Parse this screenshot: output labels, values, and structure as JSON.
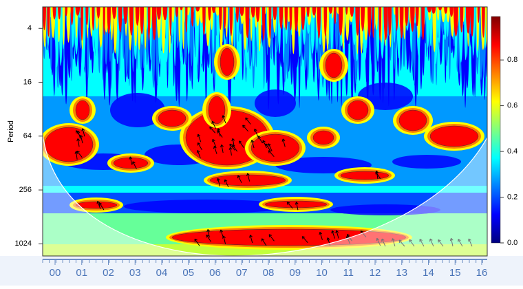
{
  "chart_data": {
    "type": "heatmap",
    "y_label": "Period",
    "y_scale": "log",
    "y_inverted": true,
    "ylim": [
      2.3,
      1400
    ],
    "yticks": [
      4,
      16,
      64,
      256,
      1024
    ],
    "categories": [
      "00",
      "01",
      "02",
      "03",
      "04",
      "05",
      "06",
      "07",
      "08",
      "09",
      "10",
      "11",
      "12",
      "13",
      "14",
      "15",
      "16"
    ],
    "colormap": [
      "#00007f",
      "#0000ff",
      "#007fff",
      "#00ffff",
      "#7fff7f",
      "#ffff00",
      "#ff7f00",
      "#ff0000",
      "#7f0000"
    ],
    "colorbar": {
      "lim": [
        0,
        0.99
      ],
      "ticks": [
        {
          "value": 0,
          "label": "0.0"
        },
        {
          "value": 0.2,
          "label": "0.2"
        },
        {
          "value": 0.4,
          "label": "0.4"
        },
        {
          "value": 0.6,
          "label": "0.6"
        },
        {
          "value": 0.8,
          "label": "0.8"
        }
      ]
    }
  }
}
